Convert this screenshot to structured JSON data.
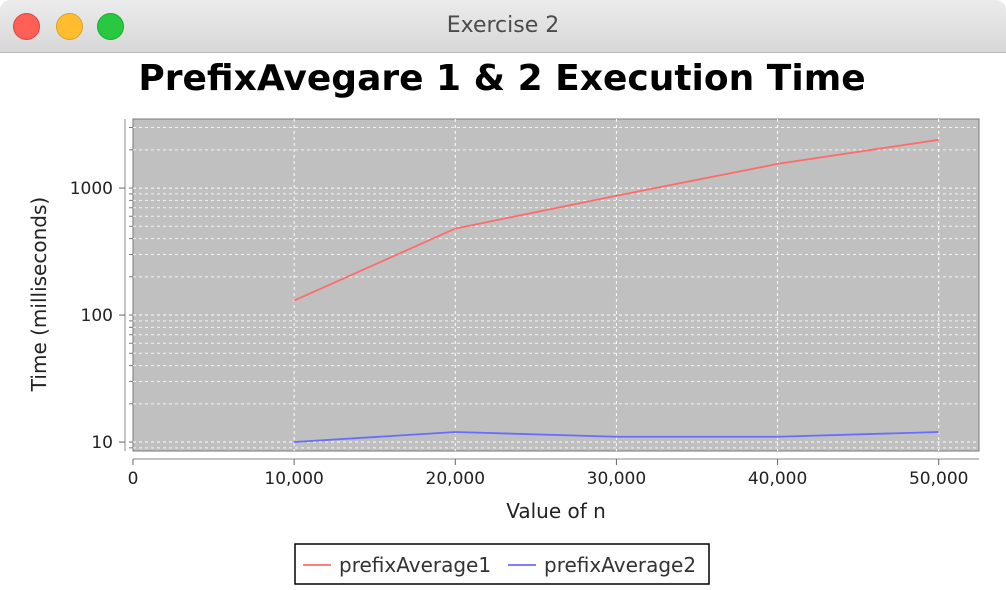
{
  "window": {
    "title": "Exercise 2"
  },
  "chart_data": {
    "type": "line",
    "title": "PrefixAvegare 1 & 2 Execution Time",
    "xlabel": "Value of n",
    "ylabel": "Time (milliseconds)",
    "x": [
      10000,
      20000,
      30000,
      40000,
      50000
    ],
    "xlim": [
      0,
      52500
    ],
    "xticks": [
      0,
      10000,
      20000,
      30000,
      40000,
      50000
    ],
    "xtick_labels": [
      "0",
      "10,000",
      "20,000",
      "30,000",
      "40,000",
      "50,000"
    ],
    "yscale": "log",
    "ylim": [
      8.5,
      3500
    ],
    "yticks": [
      10,
      100,
      1000
    ],
    "ytick_labels": [
      "10",
      "100",
      "1000"
    ],
    "grid": true,
    "legend_position": "bottom-center",
    "series": [
      {
        "name": "prefixAverage1",
        "color": "#ff6b6b",
        "values": [
          130,
          480,
          870,
          1550,
          2400
        ]
      },
      {
        "name": "prefixAverage2",
        "color": "#6b6bff",
        "values": [
          10,
          12,
          11,
          11,
          12
        ]
      }
    ]
  }
}
